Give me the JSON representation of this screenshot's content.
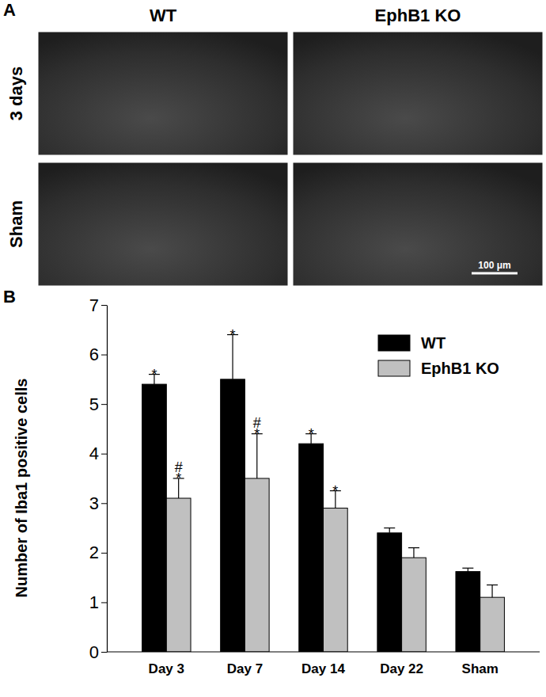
{
  "figure": {
    "panel_a": {
      "label": "A",
      "columns": [
        "WT",
        "EphB1 KO"
      ],
      "rows": [
        "3 days",
        "Sham"
      ],
      "scale_bar": "100 μm"
    },
    "panel_b_label": "B"
  },
  "chart_data": {
    "type": "bar",
    "y_label": "Number of Iba1 positive cells",
    "categories": [
      "Day 3",
      "Day 7",
      "Day 14",
      "Day 22",
      "Sham"
    ],
    "series": [
      {
        "name": "WT",
        "color": "#000000",
        "values": [
          5.4,
          5.5,
          4.2,
          2.4,
          1.62
        ],
        "errors": [
          0.2,
          0.9,
          0.2,
          0.1,
          0.07
        ],
        "annotations": [
          [
            "*"
          ],
          [
            "*"
          ],
          [
            "*"
          ],
          null,
          null
        ]
      },
      {
        "name": "EphB1 KO",
        "color": "#c0c0c0",
        "values": [
          3.1,
          3.5,
          2.9,
          1.9,
          1.1
        ],
        "errors": [
          0.4,
          0.9,
          0.35,
          0.2,
          0.25
        ],
        "annotations": [
          [
            "*",
            "#"
          ],
          [
            "*",
            "#"
          ],
          [
            "*"
          ],
          null,
          null
        ]
      }
    ],
    "ylim": [
      0,
      7
    ],
    "yticks": [
      0,
      1,
      2,
      3,
      4,
      5,
      6,
      7
    ],
    "grid": false,
    "legend": "upper right"
  }
}
